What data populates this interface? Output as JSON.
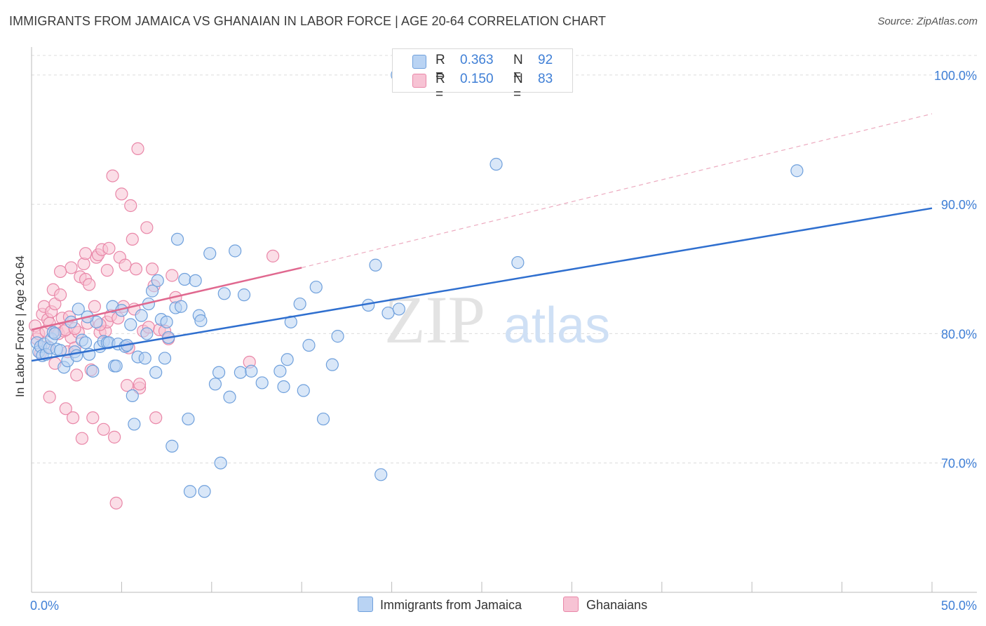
{
  "title": "IMMIGRANTS FROM JAMAICA VS GHANAIAN IN LABOR FORCE | AGE 20-64 CORRELATION CHART",
  "source": "Source: ZipAtlas.com",
  "watermark": {
    "zip": "ZIP",
    "atlas": "atlas"
  },
  "stats": [
    {
      "r_label": "R =",
      "r_value": "0.363",
      "n_label": "N =",
      "n_value": "92"
    },
    {
      "r_label": "R =",
      "r_value": "0.150",
      "n_label": "N =",
      "n_value": "83"
    }
  ],
  "legend": [
    {
      "label": "Immigrants from Jamaica",
      "color": "#6fa0dc",
      "fill": "#b9d3f3"
    },
    {
      "label": "Ghanaians",
      "color": "#e987a8",
      "fill": "#f7c3d4"
    }
  ],
  "chart_data": {
    "type": "scatter",
    "title": "IMMIGRANTS FROM JAMAICA VS GHANAIAN IN LABOR FORCE | AGE 20-64 CORRELATION CHART",
    "xlabel": "",
    "ylabel": "In Labor Force | Age 20-64",
    "xlim": [
      0,
      50
    ],
    "ylim": [
      60,
      102
    ],
    "x_tick_labels": [
      "0.0%",
      "50.0%"
    ],
    "y_ticks": [
      70,
      80,
      90,
      100
    ],
    "y_tick_labels": [
      "70.0%",
      "80.0%",
      "90.0%",
      "100.0%"
    ],
    "grid": true,
    "legend_position": "bottom",
    "colors": {
      "jamaica_line": "#2f6fcf",
      "ghana_line": "#e0688f",
      "tick_text": "#3f7fd6"
    },
    "series": [
      {
        "name": "Immigrants from Jamaica",
        "trend": {
          "x": [
            0,
            50
          ],
          "y": [
            77.9,
            89.7
          ]
        },
        "points": [
          [
            0.3,
            79.3
          ],
          [
            0.4,
            78.6
          ],
          [
            0.5,
            79.0
          ],
          [
            0.6,
            78.3
          ],
          [
            0.7,
            79.2
          ],
          [
            0.8,
            78.4
          ],
          [
            1.0,
            78.9
          ],
          [
            1.1,
            79.6
          ],
          [
            1.2,
            80.1
          ],
          [
            1.3,
            80.0
          ],
          [
            1.4,
            78.8
          ],
          [
            1.6,
            78.7
          ],
          [
            1.8,
            77.4
          ],
          [
            2.0,
            77.9
          ],
          [
            2.2,
            80.9
          ],
          [
            2.4,
            78.6
          ],
          [
            2.6,
            81.9
          ],
          [
            2.8,
            79.5
          ],
          [
            3.0,
            79.3
          ],
          [
            3.2,
            78.4
          ],
          [
            3.4,
            77.1
          ],
          [
            3.6,
            80.9
          ],
          [
            3.8,
            79.0
          ],
          [
            4.0,
            79.4
          ],
          [
            4.2,
            79.3
          ],
          [
            4.3,
            79.3
          ],
          [
            4.5,
            82.1
          ],
          [
            4.6,
            77.5
          ],
          [
            4.7,
            77.5
          ],
          [
            4.8,
            79.2
          ],
          [
            5.0,
            81.8
          ],
          [
            5.2,
            79.0
          ],
          [
            5.3,
            79.1
          ],
          [
            5.5,
            80.7
          ],
          [
            5.6,
            75.2
          ],
          [
            5.7,
            73.0
          ],
          [
            5.9,
            78.2
          ],
          [
            6.1,
            81.4
          ],
          [
            6.3,
            78.1
          ],
          [
            6.4,
            80.0
          ],
          [
            6.5,
            82.3
          ],
          [
            6.7,
            83.3
          ],
          [
            6.9,
            77.0
          ],
          [
            7.0,
            84.1
          ],
          [
            7.2,
            81.1
          ],
          [
            7.4,
            78.1
          ],
          [
            7.5,
            80.9
          ],
          [
            7.6,
            79.7
          ],
          [
            7.8,
            71.3
          ],
          [
            8.0,
            82.0
          ],
          [
            8.1,
            87.3
          ],
          [
            8.3,
            82.1
          ],
          [
            8.5,
            84.2
          ],
          [
            8.7,
            73.4
          ],
          [
            8.8,
            67.8
          ],
          [
            9.1,
            84.1
          ],
          [
            9.3,
            81.4
          ],
          [
            9.4,
            81.0
          ],
          [
            9.6,
            67.8
          ],
          [
            9.9,
            86.2
          ],
          [
            10.2,
            76.1
          ],
          [
            10.4,
            77.0
          ],
          [
            10.5,
            70.0
          ],
          [
            10.7,
            83.1
          ],
          [
            11.0,
            75.1
          ],
          [
            11.3,
            86.4
          ],
          [
            11.6,
            77.0
          ],
          [
            11.8,
            83.0
          ],
          [
            12.2,
            77.1
          ],
          [
            12.8,
            76.2
          ],
          [
            13.8,
            77.1
          ],
          [
            14.0,
            75.9
          ],
          [
            14.2,
            78.0
          ],
          [
            14.4,
            80.9
          ],
          [
            14.9,
            82.3
          ],
          [
            15.1,
            75.6
          ],
          [
            15.4,
            79.1
          ],
          [
            15.8,
            83.6
          ],
          [
            16.2,
            73.4
          ],
          [
            16.7,
            77.6
          ],
          [
            17.0,
            79.8
          ],
          [
            18.7,
            82.2
          ],
          [
            19.1,
            85.3
          ],
          [
            19.4,
            69.1
          ],
          [
            19.8,
            81.6
          ],
          [
            20.4,
            81.9
          ],
          [
            20.3,
            100.0
          ],
          [
            25.8,
            93.1
          ],
          [
            27.0,
            85.5
          ],
          [
            42.5,
            92.6
          ],
          [
            2.5,
            78.3
          ],
          [
            3.1,
            81.3
          ]
        ]
      },
      {
        "name": "Ghanaians",
        "trend": {
          "x": [
            0,
            15
          ],
          "y": [
            80.3,
            85.1
          ]
        },
        "trend_extension": {
          "x": [
            15,
            50
          ],
          "y": [
            85.1,
            97.0
          ]
        },
        "points": [
          [
            0.2,
            80.6
          ],
          [
            0.3,
            79.6
          ],
          [
            0.4,
            80.0
          ],
          [
            0.5,
            78.5
          ],
          [
            0.6,
            81.5
          ],
          [
            0.7,
            82.1
          ],
          [
            0.8,
            80.2
          ],
          [
            0.9,
            81.1
          ],
          [
            1.0,
            80.8
          ],
          [
            1.0,
            75.1
          ],
          [
            1.1,
            81.7
          ],
          [
            1.2,
            83.4
          ],
          [
            1.3,
            82.3
          ],
          [
            1.4,
            80.3
          ],
          [
            1.5,
            80.0
          ],
          [
            1.6,
            83.0
          ],
          [
            1.7,
            81.2
          ],
          [
            1.8,
            80.2
          ],
          [
            1.9,
            74.2
          ],
          [
            2.0,
            78.6
          ],
          [
            2.1,
            81.3
          ],
          [
            2.2,
            79.7
          ],
          [
            2.3,
            73.5
          ],
          [
            2.4,
            78.9
          ],
          [
            2.5,
            76.8
          ],
          [
            2.6,
            80.1
          ],
          [
            2.7,
            84.4
          ],
          [
            2.8,
            71.9
          ],
          [
            2.9,
            85.4
          ],
          [
            3.0,
            84.2
          ],
          [
            3.1,
            80.8
          ],
          [
            3.2,
            83.8
          ],
          [
            3.3,
            77.2
          ],
          [
            3.4,
            73.5
          ],
          [
            3.5,
            82.1
          ],
          [
            3.6,
            85.9
          ],
          [
            3.7,
            86.1
          ],
          [
            3.8,
            80.1
          ],
          [
            3.9,
            86.5
          ],
          [
            4.0,
            72.6
          ],
          [
            4.1,
            80.2
          ],
          [
            4.2,
            80.9
          ],
          [
            4.3,
            86.6
          ],
          [
            4.4,
            81.4
          ],
          [
            4.5,
            92.2
          ],
          [
            4.6,
            72.0
          ],
          [
            4.7,
            66.9
          ],
          [
            4.8,
            81.2
          ],
          [
            4.9,
            85.9
          ],
          [
            5.0,
            90.8
          ],
          [
            5.1,
            82.1
          ],
          [
            5.2,
            85.3
          ],
          [
            5.3,
            76.0
          ],
          [
            5.4,
            78.9
          ],
          [
            5.5,
            89.9
          ],
          [
            5.6,
            87.3
          ],
          [
            5.7,
            81.9
          ],
          [
            5.8,
            85.0
          ],
          [
            5.9,
            94.3
          ],
          [
            6.0,
            75.8
          ],
          [
            6.2,
            80.2
          ],
          [
            6.4,
            88.2
          ],
          [
            6.5,
            80.5
          ],
          [
            6.7,
            85.0
          ],
          [
            6.8,
            83.7
          ],
          [
            6.9,
            73.5
          ],
          [
            7.1,
            80.3
          ],
          [
            7.4,
            80.2
          ],
          [
            7.6,
            79.6
          ],
          [
            7.8,
            84.5
          ],
          [
            12.1,
            77.8
          ],
          [
            13.4,
            86.0
          ],
          [
            2.2,
            85.1
          ],
          [
            1.3,
            77.7
          ],
          [
            0.9,
            79.0
          ],
          [
            1.9,
            80.3
          ],
          [
            3.0,
            86.2
          ],
          [
            2.4,
            80.4
          ],
          [
            4.2,
            84.9
          ],
          [
            6.0,
            76.1
          ],
          [
            8.0,
            82.8
          ],
          [
            3.8,
            80.7
          ],
          [
            1.6,
            84.8
          ]
        ]
      }
    ]
  }
}
